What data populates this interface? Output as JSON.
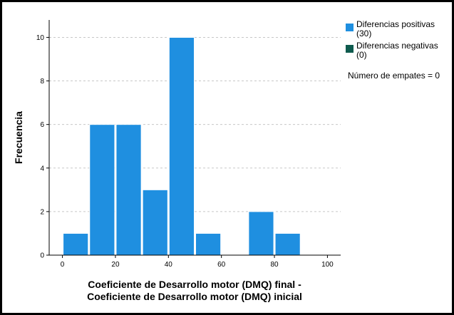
{
  "chart_data": {
    "type": "bar",
    "subtype": "histogram",
    "bin_width": 10,
    "bins": [
      {
        "start": 0,
        "end": 10,
        "count": 1
      },
      {
        "start": 10,
        "end": 20,
        "count": 6
      },
      {
        "start": 20,
        "end": 30,
        "count": 6
      },
      {
        "start": 30,
        "end": 40,
        "count": 3
      },
      {
        "start": 40,
        "end": 50,
        "count": 10
      },
      {
        "start": 50,
        "end": 60,
        "count": 1
      },
      {
        "start": 70,
        "end": 80,
        "count": 2
      },
      {
        "start": 80,
        "end": 90,
        "count": 1
      }
    ],
    "xlim": [
      -5,
      105
    ],
    "ylim": [
      0,
      10.8
    ],
    "x_ticks": [
      "0",
      "20",
      "40",
      "60",
      "80",
      "100"
    ],
    "y_ticks": [
      "0",
      "2",
      "4",
      "6",
      "8",
      "10"
    ],
    "ylabel": "Frecuencia",
    "xlabel_line1": "Coeficiente de Desarrollo motor (DMQ) final -",
    "xlabel_line2": "Coeficiente de Desarrollo motor (DMQ) inicial",
    "grid": "horizontal dashed",
    "legend_position": "top-right",
    "legend": [
      {
        "label_line1": "Diferencias positivas",
        "label_line2": "(30)",
        "color": "#1f8fe0"
      },
      {
        "label_line1": "Diferencias negativas",
        "label_line2": "(0)",
        "color": "#0e5b4e"
      }
    ],
    "note": "Número de empates = 0",
    "bar_color": "#1f8fe0"
  }
}
